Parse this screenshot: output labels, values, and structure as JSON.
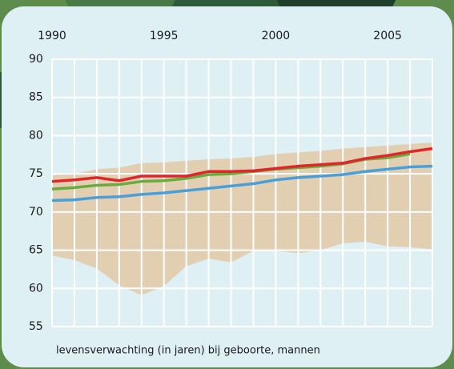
{
  "chart_data": {
    "type": "line",
    "x": [
      1990,
      1991,
      1992,
      1993,
      1994,
      1995,
      1996,
      1997,
      1998,
      1999,
      2000,
      2001,
      2002,
      2003,
      2004,
      2005,
      2006,
      2007
    ],
    "xlim": [
      1990,
      2007
    ],
    "xticks": [
      1990,
      1995,
      2000,
      2005
    ],
    "ylim": [
      55,
      90
    ],
    "yticks": [
      55,
      60,
      65,
      70,
      75,
      80,
      85,
      90
    ],
    "grid": true,
    "band": {
      "color": "#e2cfb1",
      "upper": [
        74.8,
        75.0,
        75.6,
        75.8,
        76.4,
        76.5,
        76.7,
        76.9,
        77.0,
        77.2,
        77.6,
        77.8,
        78.0,
        78.3,
        78.5,
        78.7,
        78.9,
        79.1
      ],
      "lower": [
        64.3,
        63.7,
        62.6,
        60.4,
        59.1,
        60.3,
        62.9,
        63.9,
        63.4,
        64.9,
        64.9,
        64.6,
        65.0,
        65.9,
        66.1,
        65.5,
        65.4,
        65.1
      ]
    },
    "series": [
      {
        "color": "#4a9fd8",
        "values": [
          71.5,
          71.6,
          71.9,
          72.0,
          72.3,
          72.5,
          72.8,
          73.1,
          73.4,
          73.7,
          74.2,
          74.5,
          74.7,
          74.9,
          75.3,
          75.6,
          75.9,
          76.0
        ]
      },
      {
        "color": "#6aab3f",
        "values": [
          73.0,
          73.2,
          73.5,
          73.6,
          74.0,
          74.1,
          74.4,
          74.9,
          75.0,
          75.3,
          75.6,
          75.8,
          76.0,
          76.3,
          76.9,
          77.1,
          77.6,
          null
        ]
      },
      {
        "color": "#e0262b",
        "values": [
          74.0,
          74.2,
          74.5,
          74.1,
          74.7,
          74.7,
          74.7,
          75.3,
          75.3,
          75.4,
          75.7,
          76.0,
          76.2,
          76.4,
          77.0,
          77.4,
          77.9,
          78.3
        ]
      }
    ],
    "caption": "levensverwachting (in jaren) bij geboorte, mannen"
  }
}
